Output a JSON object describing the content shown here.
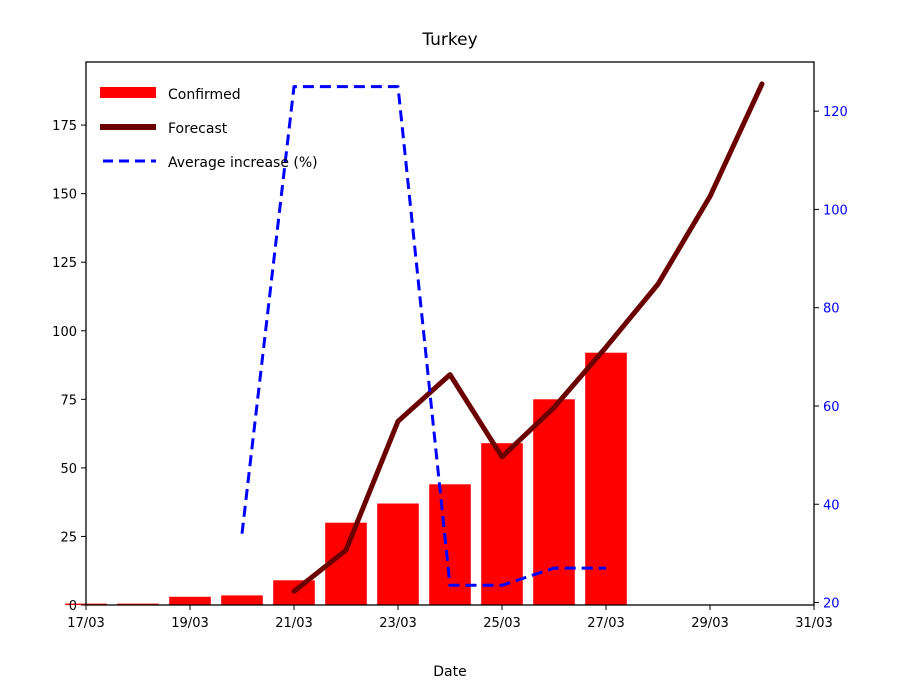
{
  "chart_data": {
    "type": "bar",
    "title": "Turkey",
    "xlabel": "Date",
    "ylabel": "",
    "x_ticks": [
      "17/03",
      "19/03",
      "21/03",
      "23/03",
      "25/03",
      "27/03",
      "29/03",
      "31/03"
    ],
    "y_ticks_left": [
      "0",
      "25",
      "50",
      "75",
      "100",
      "125",
      "150",
      "175"
    ],
    "y_ticks_right": [
      "20",
      "40",
      "60",
      "80",
      "100",
      "120"
    ],
    "xlim_days": [
      17,
      31
    ],
    "ylim_left": [
      0,
      198
    ],
    "ylim_right": [
      19.5,
      130
    ],
    "legend_position": "top-left",
    "grid": false,
    "series": [
      {
        "name": "Confirmed",
        "kind": "bar",
        "axis": "left",
        "color": "#ff0000",
        "dates": [
          "17/03",
          "18/03",
          "19/03",
          "20/03",
          "21/03",
          "22/03",
          "23/03",
          "24/03",
          "25/03",
          "26/03",
          "27/03"
        ],
        "values": [
          0.5,
          0.5,
          3,
          3.5,
          9,
          30,
          37,
          44,
          59,
          75,
          92
        ]
      },
      {
        "name": "Forecast",
        "kind": "line",
        "axis": "left",
        "color": "#6b0000",
        "dates": [
          "21/03",
          "22/03",
          "23/03",
          "24/03",
          "25/03",
          "26/03",
          "27/03",
          "28/03",
          "29/03",
          "30/03"
        ],
        "values": [
          5,
          20,
          67,
          84,
          54,
          72,
          94,
          117,
          149,
          190
        ]
      },
      {
        "name": "Average increase (%)",
        "kind": "dashed-line",
        "axis": "right",
        "color": "#0000ff",
        "dates": [
          "20/03",
          "21/03",
          "22/03",
          "23/03",
          "24/03",
          "25/03",
          "26/03",
          "27/03"
        ],
        "values": [
          34,
          125,
          125,
          125,
          23.5,
          23.5,
          27,
          27
        ]
      }
    ]
  }
}
